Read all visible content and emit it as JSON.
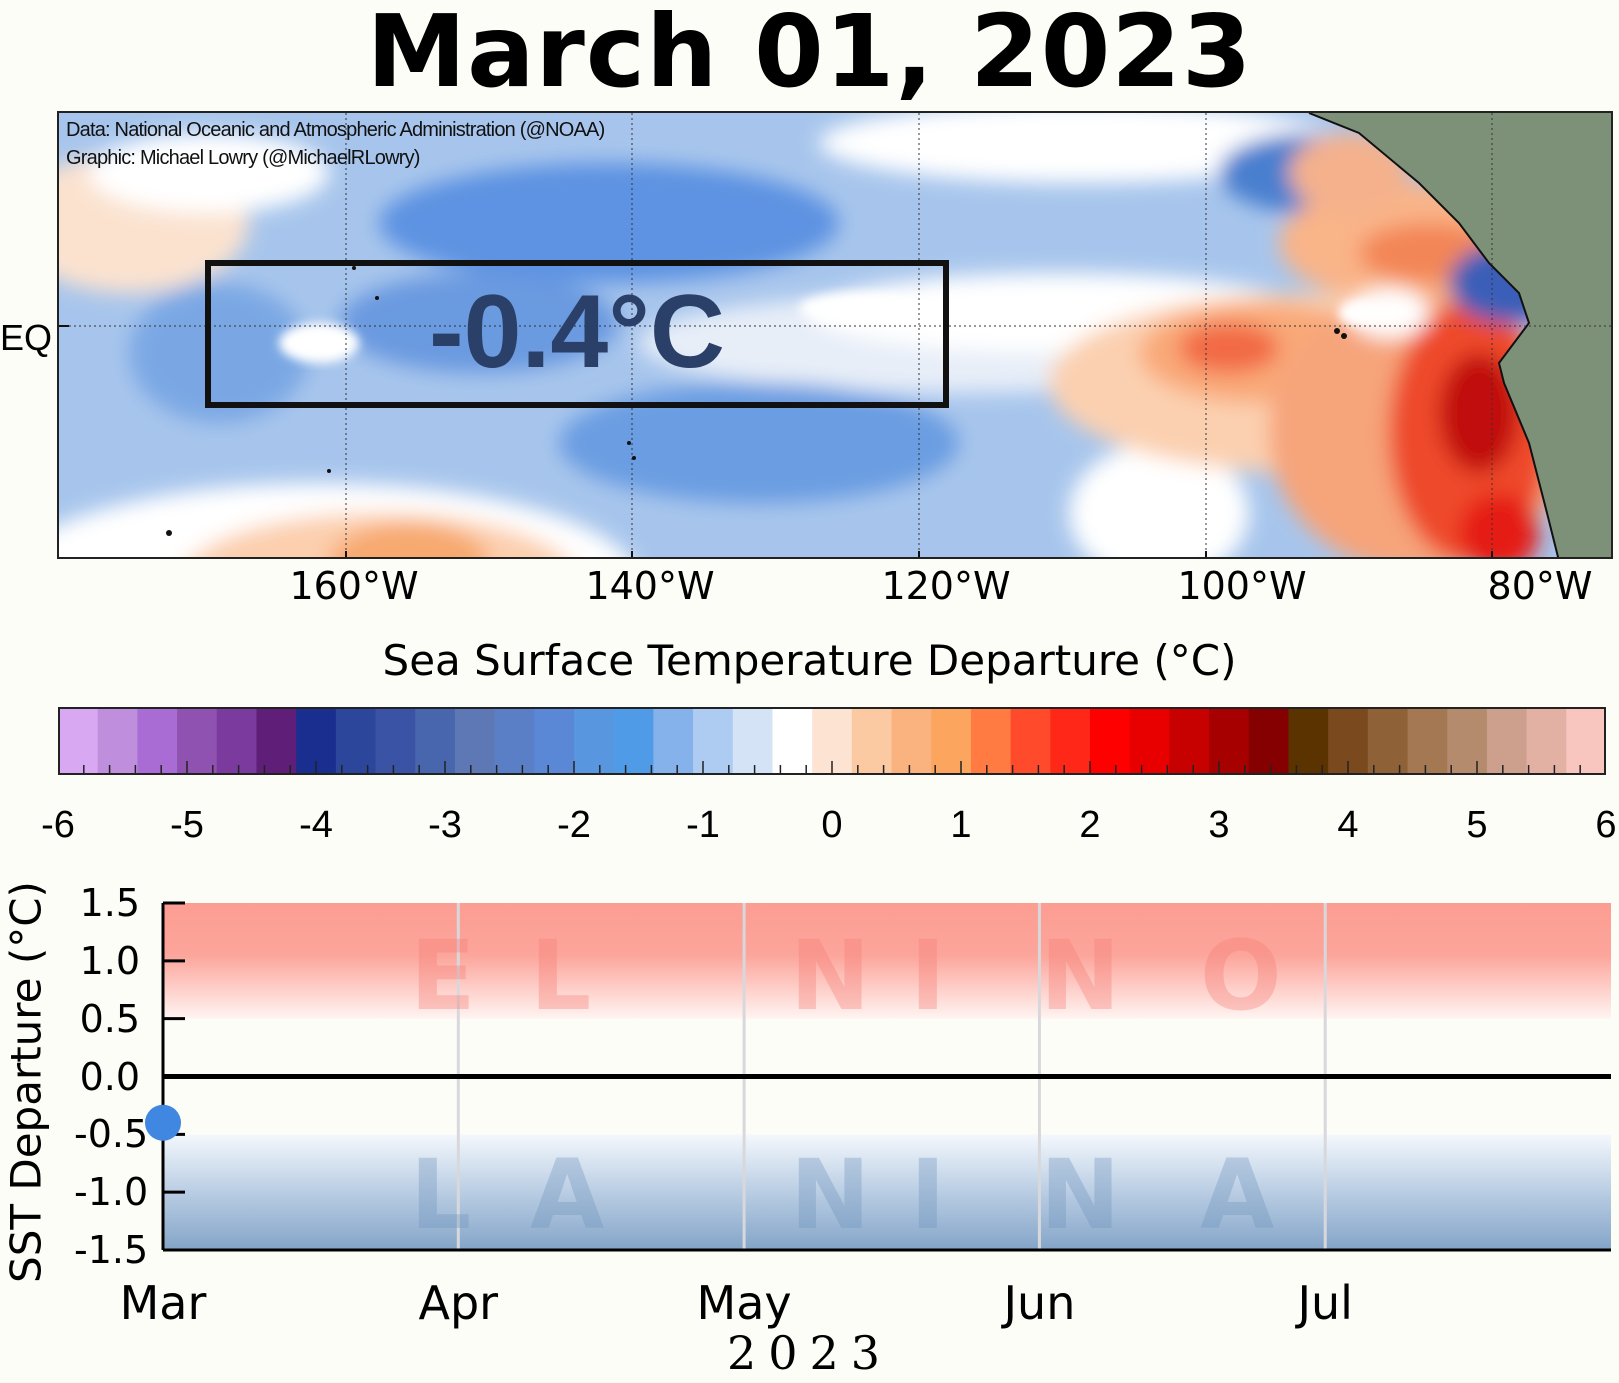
{
  "title": "March 01, 2023",
  "map": {
    "credit_data": "Data: National Oceanic and Atmospheric Administration (@NOAA)",
    "credit_graphic": "Graphic: Michael Lowry (@MichaelRLowry)",
    "nino_box_value": "-0.4°C",
    "equator_label": "EQ",
    "longitude_labels": [
      "160°W",
      "140°W",
      "120°W",
      "100°W",
      "80°W"
    ],
    "land_color": "#7d9179"
  },
  "colorbar": {
    "title": "Sea Surface Temperature Departure (°C)",
    "tick_labels": [
      "-6",
      "-5",
      "-4",
      "-3",
      "-2",
      "-1",
      "0",
      "1",
      "2",
      "3",
      "4",
      "5",
      "6"
    ],
    "colors": [
      "#d9a8f2",
      "#bf8fde",
      "#a86cd4",
      "#9052b0",
      "#7a3a9e",
      "#5f1f78",
      "#1a2e8f",
      "#2b469a",
      "#3a53a4",
      "#4866ad",
      "#5d78b5",
      "#5a7fc6",
      "#5b88d6",
      "#5896e0",
      "#4f9be8",
      "#86b2ec",
      "#aecbf2",
      "#d4e4f6",
      "#ffffff",
      "#fde3d2",
      "#fbcaa3",
      "#fab27e",
      "#fba55e",
      "#ff7b41",
      "#ff4a2b",
      "#ff2717",
      "#ff0000",
      "#e80000",
      "#c70000",
      "#a60000",
      "#850000",
      "#5a3300",
      "#7a4a1e",
      "#8e6236",
      "#a37852",
      "#b58b6d",
      "#cda08e",
      "#e3b0a4",
      "#f8c5bf"
    ]
  },
  "chart_data": {
    "type": "scatter",
    "title": "",
    "ylabel": "SST Departure (°C)",
    "xlabel": "2023",
    "x_ticks": [
      "Mar",
      "Apr",
      "May",
      "Jun",
      "Jul"
    ],
    "y_ticks": [
      "1.5",
      "1.0",
      "0.5",
      "0.0",
      "-0.5",
      "-1.0",
      "-1.5"
    ],
    "ylim": [
      -1.5,
      1.5
    ],
    "xlim": [
      "2023-03-01",
      "2023-07-31"
    ],
    "series": [
      {
        "x": [
          "2023-03-01"
        ],
        "y": [
          -0.4
        ],
        "color": "#3f87e0"
      }
    ],
    "el_nino_label": "E L N I N O",
    "la_nina_label": "L A N I N A",
    "el_nino_threshold": 0.5,
    "la_nina_threshold": -0.5
  }
}
